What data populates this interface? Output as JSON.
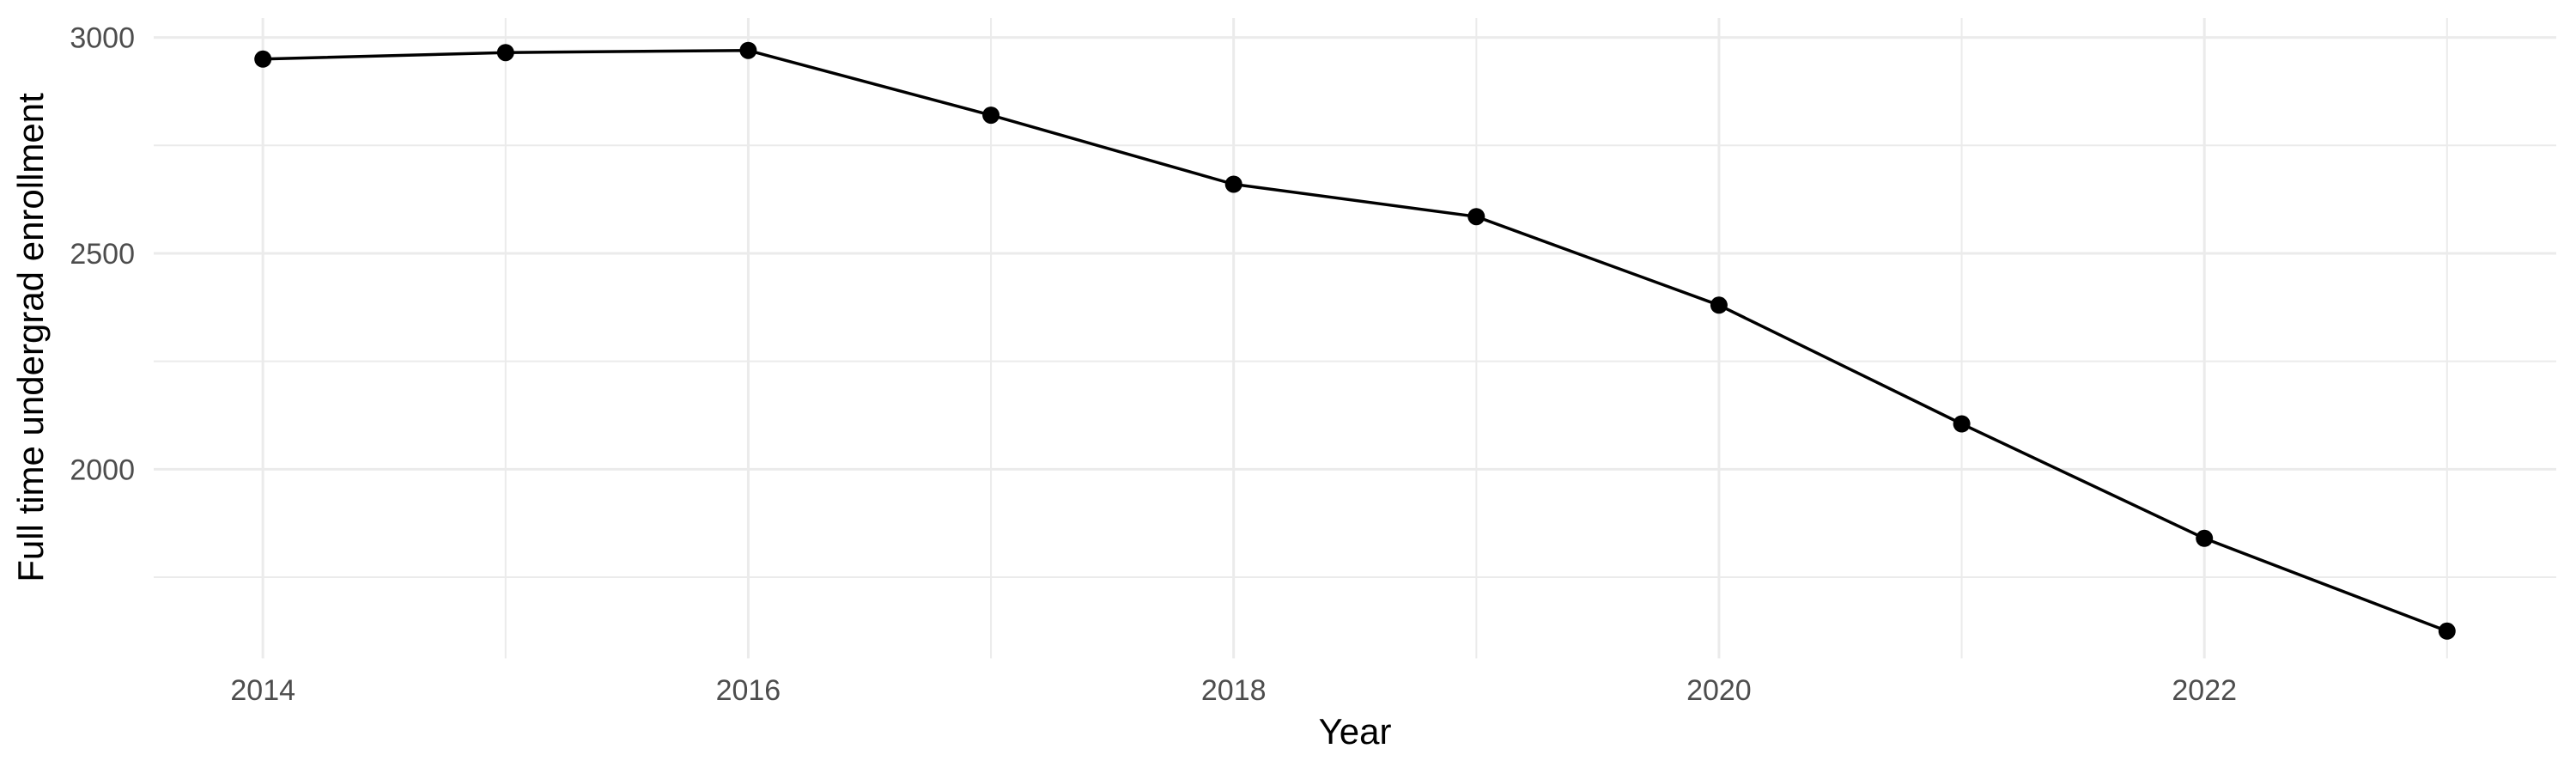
{
  "chart_data": {
    "type": "line",
    "title": "",
    "xlabel": "Year",
    "ylabel": "Full time undergrad enrollment",
    "x": [
      2014,
      2015,
      2016,
      2017,
      2018,
      2019,
      2020,
      2021,
      2022,
      2023
    ],
    "series": [
      {
        "name": "Full time undergrad enrollment",
        "values": [
          2950,
          2965,
          2970,
          2820,
          2660,
          2585,
          2380,
          2105,
          1840,
          1625
        ]
      }
    ],
    "xlim": [
      2013.55,
      2023.45
    ],
    "ylim": [
      1562,
      3045
    ],
    "x_ticks": {
      "major": [
        2014,
        2016,
        2018,
        2020,
        2022
      ],
      "minor_gridlines": [
        2015,
        2017,
        2019,
        2021,
        2023
      ],
      "major_labels": [
        "2014",
        "2016",
        "2018",
        "2020",
        "2022"
      ]
    },
    "y_ticks": {
      "major": [
        2000,
        2500,
        3000
      ],
      "minor_gridlines": [
        1750,
        2250,
        2750
      ],
      "major_labels": [
        "2000",
        "2500",
        "3000"
      ]
    },
    "grid": "on",
    "legend": "none",
    "style": {
      "line_color": "#000000",
      "point_color": "#000000",
      "grid_major_color": "#EBEBEB",
      "grid_minor_color": "#EBEBEB",
      "tick_label_color": "#4D4D4D",
      "axis_title_color": "#000000",
      "background": "#FFFFFF"
    }
  }
}
